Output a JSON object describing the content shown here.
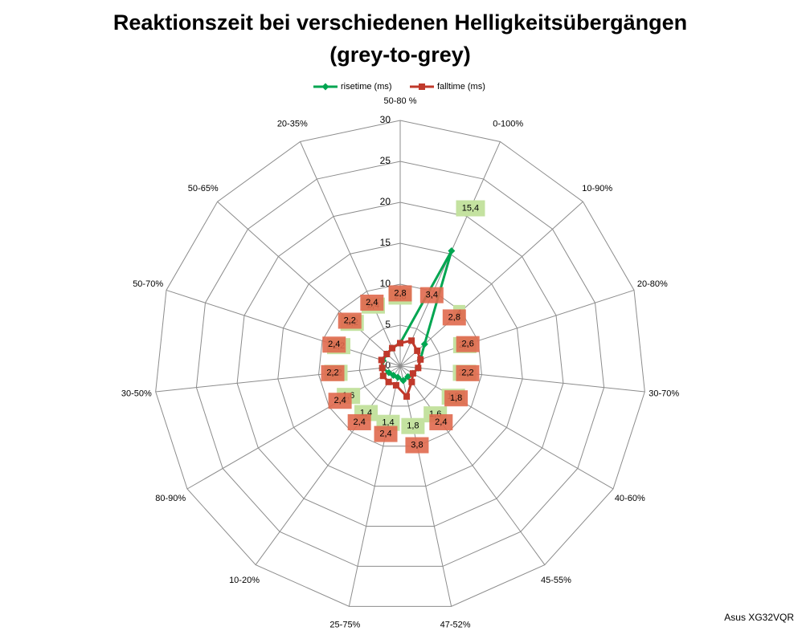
{
  "chart_data": {
    "type": "radar",
    "title": [
      "Reaktionszeit bei verschiedenen Helligkeitsübergängen",
      "(grey-to-grey)"
    ],
    "categories": [
      "50-80 %",
      "0-100%",
      "10-90%",
      "20-80%",
      "30-70%",
      "40-60%",
      "45-55%",
      "47-52%",
      "25-75%",
      "10-20%",
      "80-90%",
      "30-50%",
      "50-70%",
      "50-65%",
      "20-35%"
    ],
    "series": [
      {
        "name": "risetime (ms)",
        "color": "#00a651",
        "marker": "diamond",
        "values": [
          2.8,
          15.4,
          4,
          2.6,
          2.2,
          1.8,
          1.6,
          1.8,
          1.4,
          1.4,
          1.6,
          2.2,
          2.2,
          2.2,
          2.4
        ],
        "value_labels": [
          "2,8",
          "15,4",
          "4",
          "2,6",
          "2,2",
          "1,8",
          "1,6",
          "1,8",
          "1,4",
          "1,4",
          "1,6",
          "2,2",
          "2,2",
          "2,2",
          "2,4"
        ]
      },
      {
        "name": "falltime (ms)",
        "color": "#c0392b",
        "marker": "square",
        "values": [
          2.8,
          3.4,
          2.8,
          2.6,
          2.2,
          1.8,
          2.4,
          3.8,
          2.4,
          2.4,
          2.4,
          2.2,
          2.4,
          2.2,
          2.4
        ],
        "value_labels": [
          "2,8",
          "3,4",
          "2,8",
          "2,6",
          "2,2",
          "1,8",
          "2,4",
          "3,8",
          "2,4",
          "2,4",
          "2,4",
          "2,2",
          "2,4",
          "2,2",
          "2,4"
        ]
      }
    ],
    "ylim": [
      0,
      30
    ],
    "yticks": [
      0,
      5,
      10,
      15,
      20,
      25,
      30
    ],
    "grid": true,
    "legend": "top",
    "annotation": "Asus XG32VQR"
  }
}
